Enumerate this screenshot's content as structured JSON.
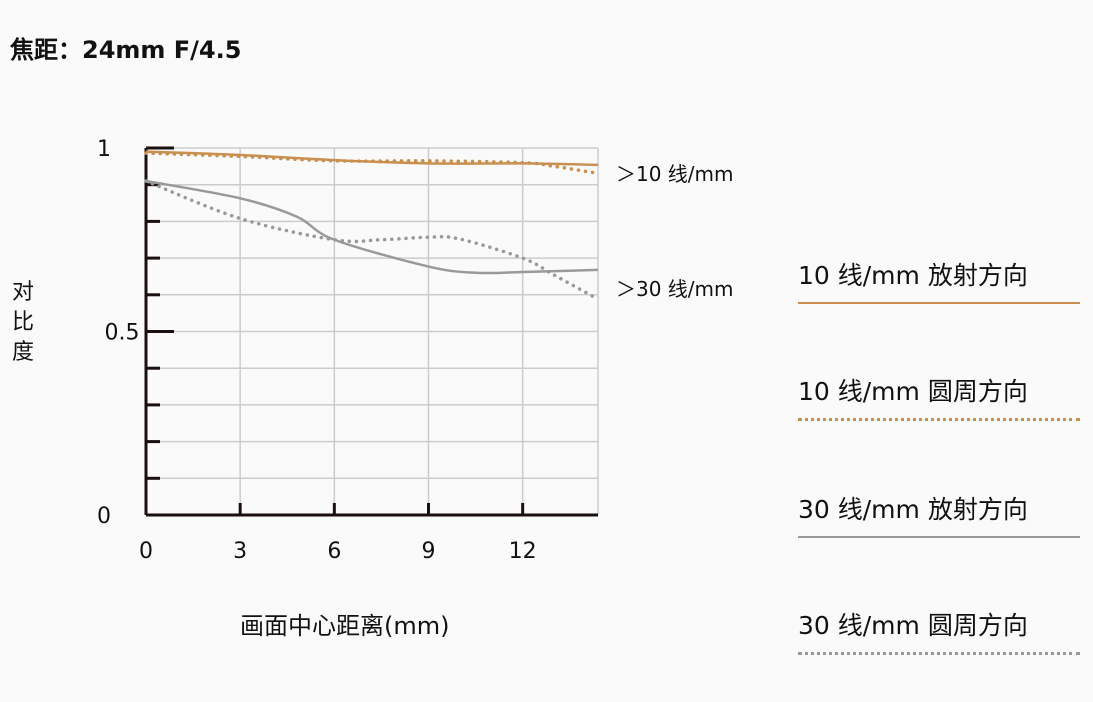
{
  "title": "焦距：24mm  F/4.5",
  "chart_data": {
    "type": "line",
    "title": "焦距：24mm  F/4.5",
    "xlabel": "画面中心距离(mm)",
    "ylabel": "对比度",
    "xlim": [
      0,
      14.4
    ],
    "ylim": [
      0,
      1
    ],
    "xticks": [
      "0",
      "3",
      "6",
      "9",
      "12"
    ],
    "yticks": [
      "0",
      "0.5",
      "1"
    ],
    "grid": true,
    "legend_placement": "right",
    "annotations": [
      "＞10 线/mm",
      "＞30 线/mm"
    ],
    "series": [
      {
        "name": "10 线/mm  放射方向",
        "color": "#c98f4e",
        "style": "solid",
        "x": [
          0,
          3,
          6,
          9,
          12,
          14.4
        ],
        "y": [
          0.99,
          0.981,
          0.967,
          0.958,
          0.958,
          0.954
        ]
      },
      {
        "name": "10 线/mm  圆周方向",
        "color": "#c98f4e",
        "style": "dotted",
        "x": [
          0,
          3,
          6,
          9,
          12,
          13,
          14.4
        ],
        "y": [
          0.986,
          0.977,
          0.965,
          0.965,
          0.96,
          0.95,
          0.931
        ]
      },
      {
        "name": "30 线/mm  放射方向",
        "color": "#999999",
        "style": "solid",
        "x": [
          0,
          3,
          4.8,
          6,
          9,
          10.5,
          12,
          14.4
        ],
        "y": [
          0.91,
          0.863,
          0.813,
          0.75,
          0.677,
          0.66,
          0.662,
          0.668
        ]
      },
      {
        "name": "30 线/mm  圆周方向",
        "color": "#999999",
        "style": "dotted",
        "x": [
          0,
          3,
          6,
          7.5,
          9,
          10,
          12,
          13,
          14.4
        ],
        "y": [
          0.91,
          0.808,
          0.75,
          0.75,
          0.757,
          0.752,
          0.7,
          0.654,
          0.588
        ]
      }
    ]
  }
}
